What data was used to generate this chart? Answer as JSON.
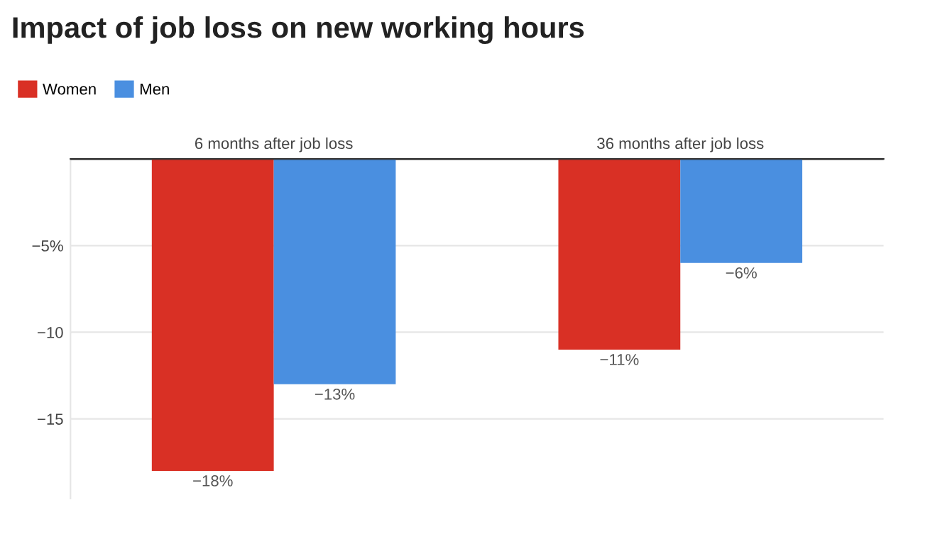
{
  "chart_data": {
    "type": "bar",
    "title": "Impact of job loss on new working hours",
    "categories": [
      "6 months after job loss",
      "36 months after job loss"
    ],
    "series": [
      {
        "name": "Women",
        "color": "#d93025",
        "values": [
          -18,
          -11
        ],
        "value_labels": [
          "−18%",
          "−11%"
        ]
      },
      {
        "name": "Men",
        "color": "#4a8fe0",
        "values": [
          -13,
          -6
        ],
        "value_labels": [
          "−13%",
          "−6%"
        ]
      }
    ],
    "ylim": [
      -19.6,
      0
    ],
    "yticks": [
      {
        "value": -15,
        "label": "−15"
      },
      {
        "value": -10,
        "label": "−10"
      },
      {
        "value": -5,
        "label": "−5%"
      }
    ],
    "grid": "y",
    "legend": "top left"
  }
}
